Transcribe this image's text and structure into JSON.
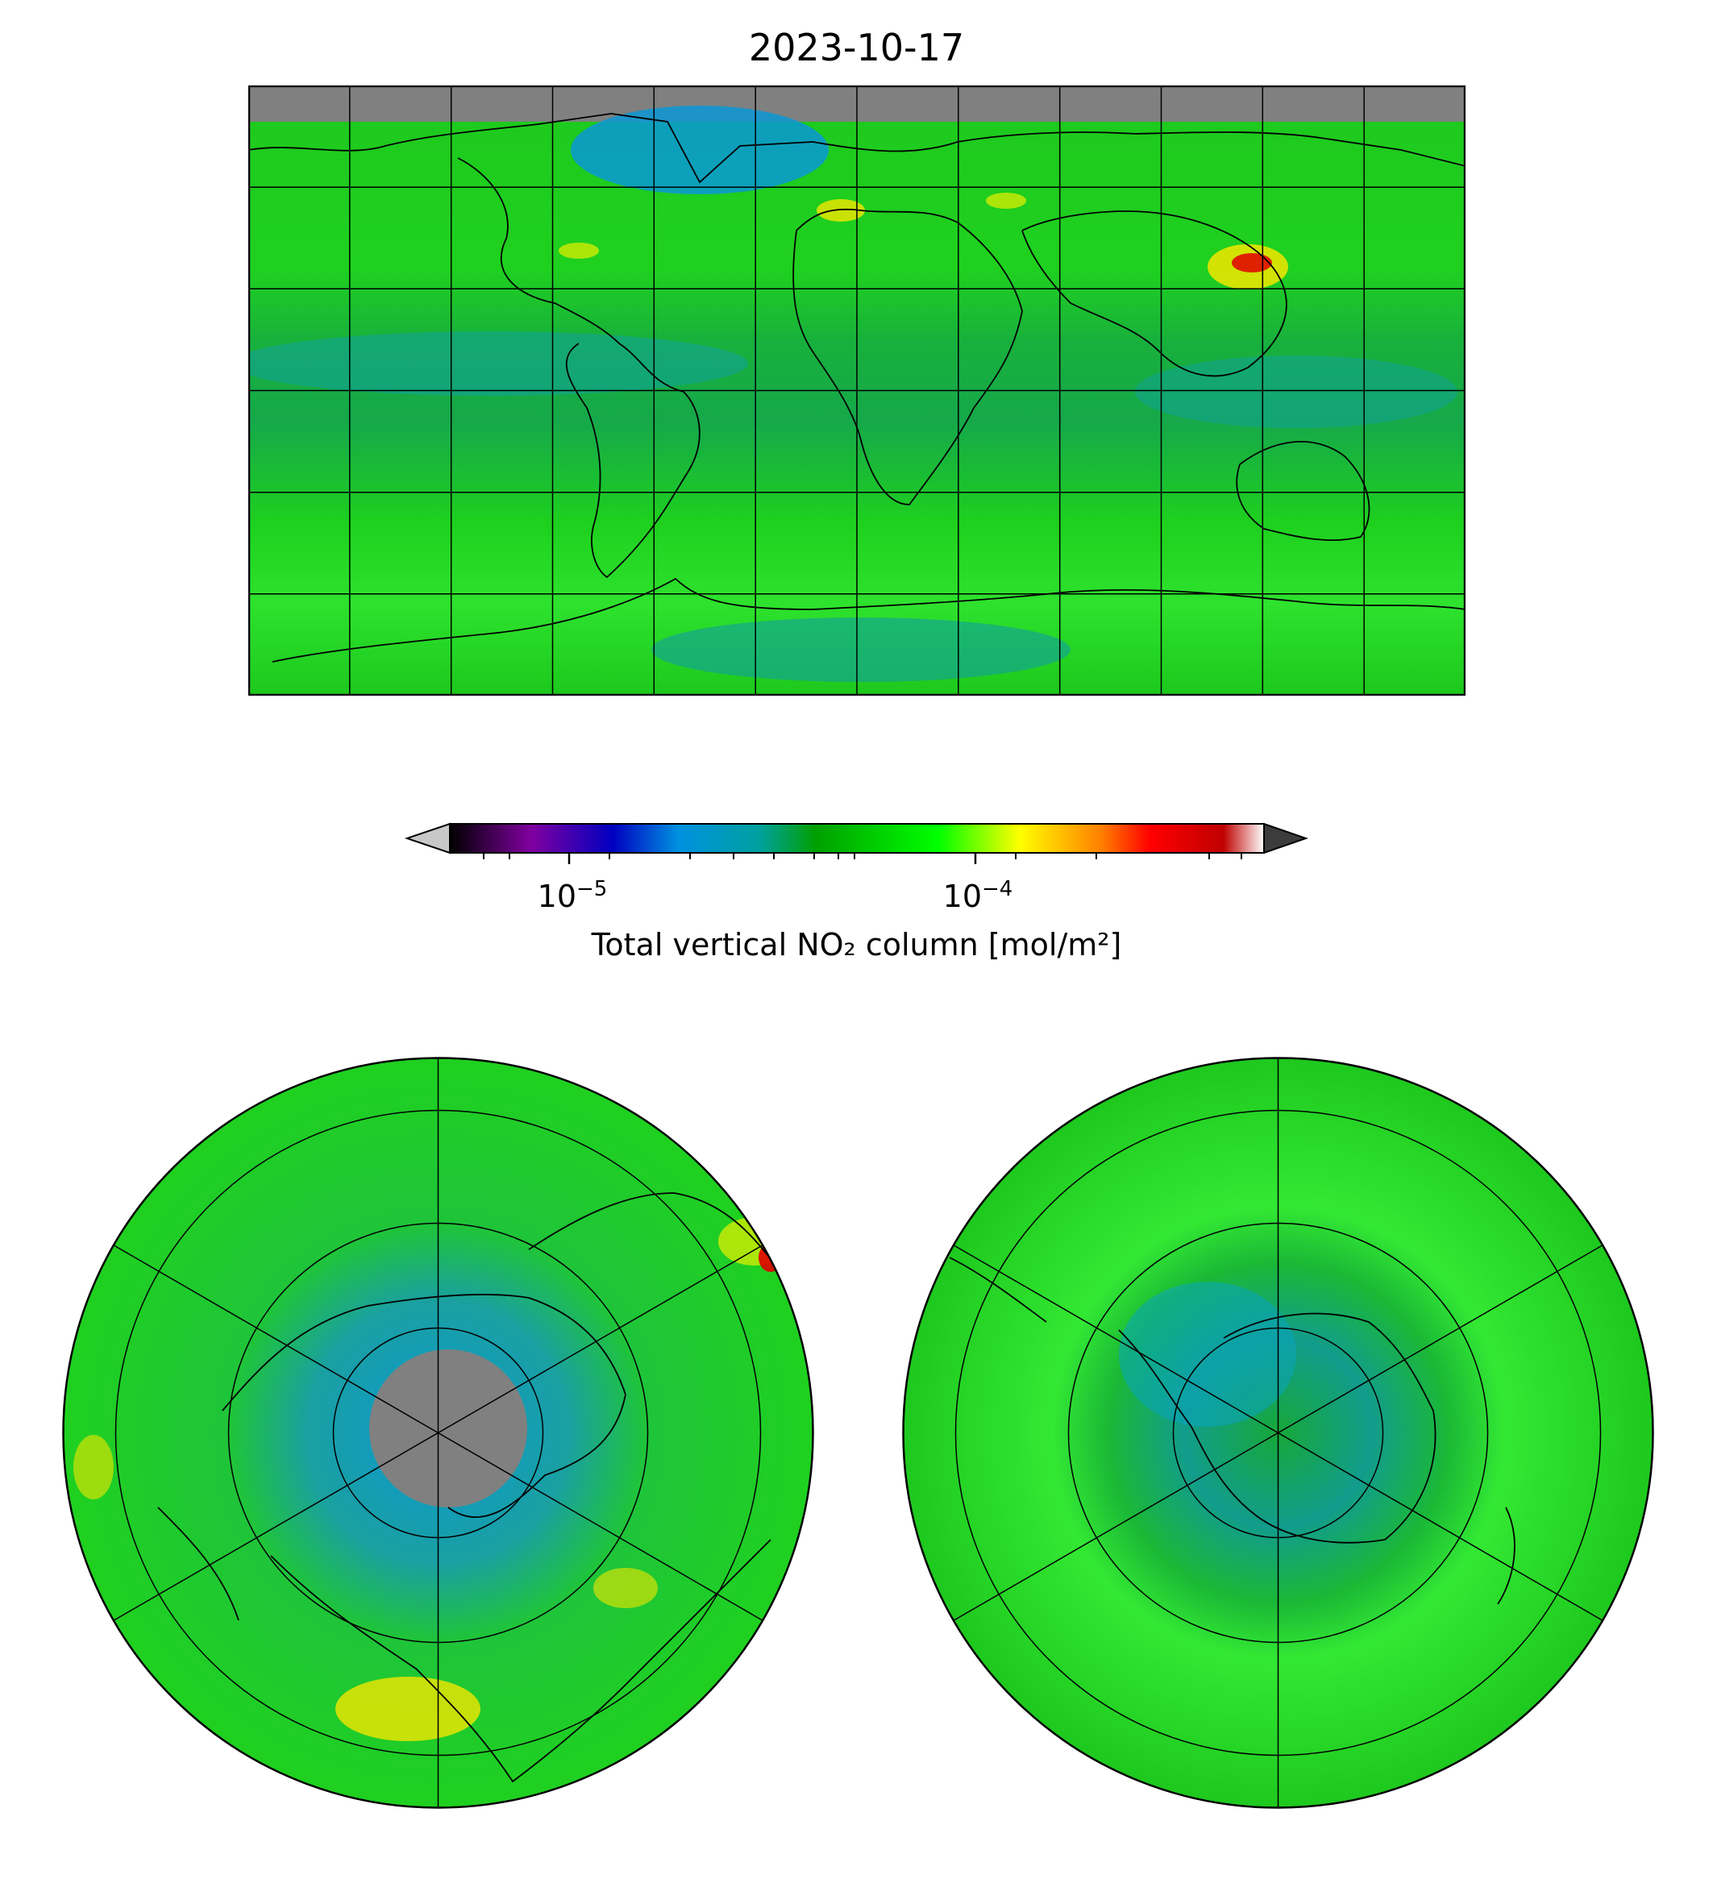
{
  "title": "2023-10-17",
  "colorbar": {
    "label": "Total vertical NO₂ column [mol/m²]",
    "tick_base": "10",
    "ticks": [
      {
        "exponent": "−5",
        "value": 1e-05
      },
      {
        "exponent": "−4",
        "value": 0.0001
      }
    ],
    "range": [
      5e-06,
      0.0005
    ],
    "scale": "log",
    "extend": "both",
    "under_color": "#c8c8c8",
    "over_color": "#3c3c3c",
    "colormap": [
      "#000000",
      "#8000a0",
      "#0000c0",
      "#0090e0",
      "#00a0a0",
      "#00a000",
      "#00ff00",
      "#ffff00",
      "#ff8000",
      "#ff0000",
      "#c00000",
      "#ffffff"
    ]
  },
  "maps": [
    {
      "name": "global",
      "projection": "equirectangular"
    },
    {
      "name": "north-polar",
      "projection": "north polar stereographic"
    },
    {
      "name": "south-polar",
      "projection": "south polar stereographic"
    }
  ],
  "colors": {
    "background_field": "#1fd11f",
    "no_data": "#808080",
    "clean_tropics": "#18b04a",
    "low_cyan": "#0aa4c0",
    "high_yellow": "#f2e600",
    "hot_red": "#e00000"
  }
}
